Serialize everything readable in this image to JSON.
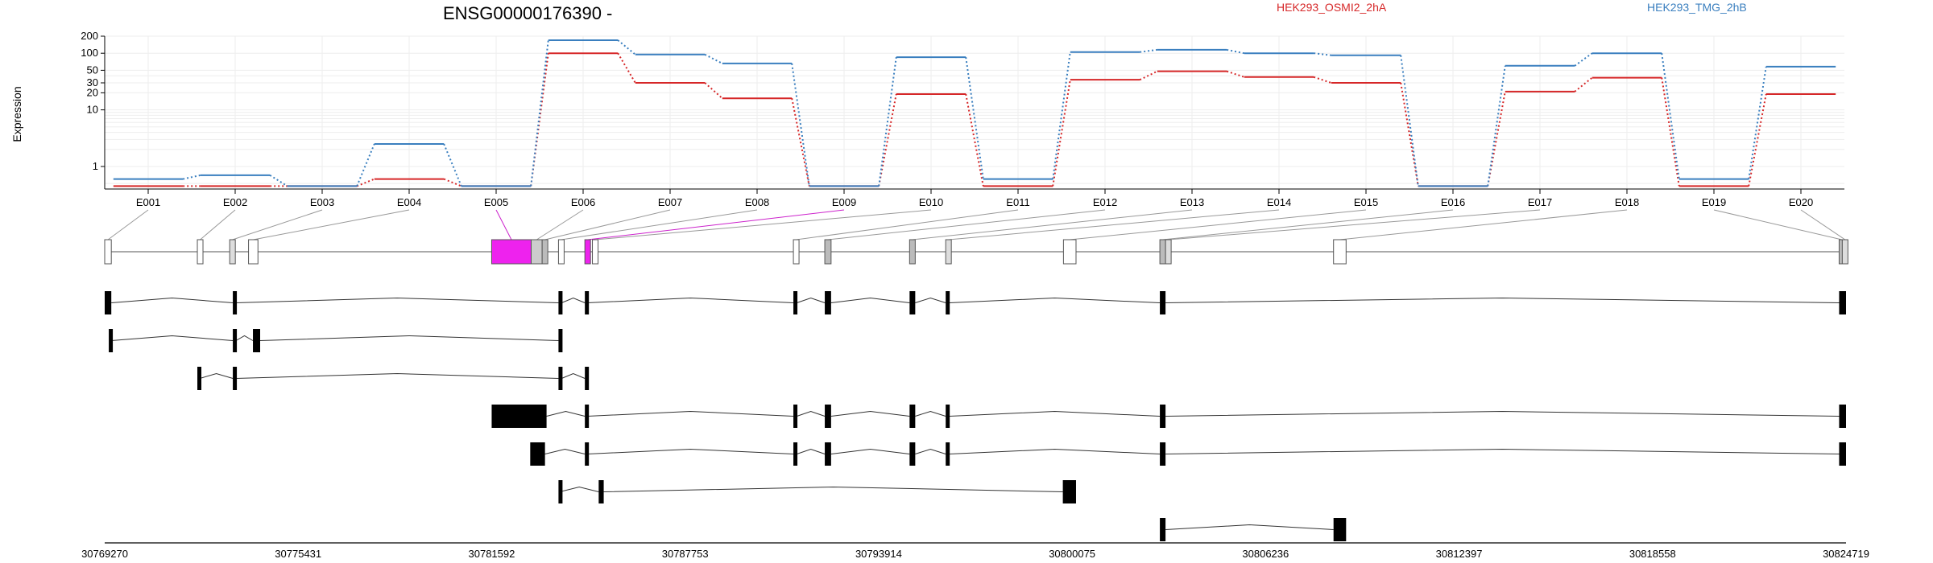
{
  "chart_data": {
    "type": "line",
    "title": "ENSG00000176390 -",
    "ylabel": "Expression",
    "yscale": "log",
    "ylim": [
      0.4,
      200
    ],
    "yticks": [
      1,
      10,
      20,
      30,
      50,
      100,
      200
    ],
    "grid": true,
    "legend_position": "top-right",
    "categories": [
      "E001",
      "E002",
      "E003",
      "E004",
      "E005",
      "E006",
      "E007",
      "E008",
      "E009",
      "E010",
      "E011",
      "E012",
      "E013",
      "E014",
      "E015",
      "E016",
      "E017",
      "E018",
      "E019",
      "E020"
    ],
    "series": [
      {
        "name": "HEK293_OSMI2_2hA",
        "color": "#d62728",
        "values": [
          0.45,
          0.45,
          0.45,
          0.6,
          0.45,
          100,
          30,
          16,
          0.45,
          19,
          0.45,
          34,
          48,
          38,
          30,
          0.45,
          21,
          37,
          0.45,
          19
        ]
      },
      {
        "name": "HEK293_TMG_2hB",
        "color": "#3a7fbf",
        "values": [
          0.6,
          0.7,
          0.45,
          2.5,
          0.45,
          170,
          95,
          66,
          0.45,
          85,
          0.6,
          105,
          115,
          100,
          92,
          0.45,
          60,
          100,
          0.6,
          58
        ]
      }
    ],
    "gene_model": {
      "coordinate_ticks": [
        "30769270",
        "30775431",
        "30781592",
        "30787753",
        "30793914",
        "30800075",
        "30806236",
        "30812397",
        "30818558",
        "30824719"
      ],
      "coord_range": [
        30769270,
        30824719
      ],
      "exon_bins": [
        {
          "id": "E001",
          "start": 30769270,
          "end": 30769480,
          "fill": "#ffffff"
        },
        {
          "id": "E002",
          "start": 30772220,
          "end": 30772300,
          "fill": "#ffffff"
        },
        {
          "id": "E003",
          "start": 30773250,
          "end": 30773350,
          "fill": "#dddddd"
        },
        {
          "id": "E004",
          "start": 30773850,
          "end": 30774150,
          "fill": "#ffffff"
        },
        {
          "id": "E005",
          "start": 30781592,
          "end": 30782850,
          "fill": "#ee22ee"
        },
        {
          "id": "E006",
          "start": 30782850,
          "end": 30783200,
          "fill": "#cccccc"
        },
        {
          "id": "E007",
          "start": 30783200,
          "end": 30783370,
          "fill": "#bbbbbb"
        },
        {
          "id": "E008",
          "start": 30783720,
          "end": 30783800,
          "fill": "#ffffff"
        },
        {
          "id": "E009",
          "start": 30784560,
          "end": 30784640,
          "fill": "#ee22ee"
        },
        {
          "id": "E010",
          "start": 30784800,
          "end": 30784980,
          "fill": "#ffffff"
        },
        {
          "id": "E011",
          "start": 30791200,
          "end": 30791310,
          "fill": "#ffffff"
        },
        {
          "id": "E012",
          "start": 30792200,
          "end": 30792400,
          "fill": "#bbbbbb"
        },
        {
          "id": "E013",
          "start": 30794900,
          "end": 30795080,
          "fill": "#bbbbbb"
        },
        {
          "id": "E014",
          "start": 30796050,
          "end": 30796170,
          "fill": "#dddddd"
        },
        {
          "id": "E015",
          "start": 30799800,
          "end": 30800200,
          "fill": "#ffffff"
        },
        {
          "id": "E016",
          "start": 30802870,
          "end": 30803050,
          "fill": "#bbbbbb"
        },
        {
          "id": "E017",
          "start": 30803050,
          "end": 30803150,
          "fill": "#dddddd"
        },
        {
          "id": "E018",
          "start": 30808400,
          "end": 30808800,
          "fill": "#ffffff"
        },
        {
          "id": "E019",
          "start": 30824500,
          "end": 30824600,
          "fill": "#bbbbbb"
        },
        {
          "id": "E020",
          "start": 30824600,
          "end": 30824719,
          "fill": "#dddddd"
        }
      ],
      "transcripts": [
        [
          [
            30769270,
            30769480
          ],
          [
            30773350,
            30773450
          ],
          [
            30783720,
            30783820
          ],
          [
            30784560,
            30784640
          ],
          [
            30791200,
            30791310
          ],
          [
            30792200,
            30792400
          ],
          [
            30794900,
            30795080
          ],
          [
            30796050,
            30796170
          ],
          [
            30802870,
            30803050
          ],
          [
            30824500,
            30824719
          ]
        ],
        [
          [
            30769400,
            30769480
          ],
          [
            30773350,
            30773450
          ],
          [
            30773990,
            30774220
          ],
          [
            30783720,
            30783820
          ]
        ],
        [
          [
            30772220,
            30772300
          ],
          [
            30773350,
            30773450
          ],
          [
            30783720,
            30783820
          ],
          [
            30784560,
            30784640
          ]
        ],
        [
          [
            30781592,
            30783340
          ],
          [
            30784560,
            30784640
          ],
          [
            30791200,
            30791310
          ],
          [
            30792200,
            30792400
          ],
          [
            30794900,
            30795080
          ],
          [
            30796050,
            30796170
          ],
          [
            30802870,
            30803050
          ],
          [
            30824500,
            30824719
          ]
        ],
        [
          [
            30782820,
            30783290
          ],
          [
            30784560,
            30784640
          ],
          [
            30791200,
            30791310
          ],
          [
            30792200,
            30792400
          ],
          [
            30794900,
            30795080
          ],
          [
            30796050,
            30796170
          ],
          [
            30802870,
            30803050
          ],
          [
            30824500,
            30824719
          ]
        ],
        [
          [
            30783720,
            30783760
          ],
          [
            30785000,
            30785160
          ],
          [
            30799780,
            30800200
          ]
        ],
        [
          [
            30802870,
            30803050
          ],
          [
            30808400,
            30808800
          ]
        ]
      ]
    }
  }
}
